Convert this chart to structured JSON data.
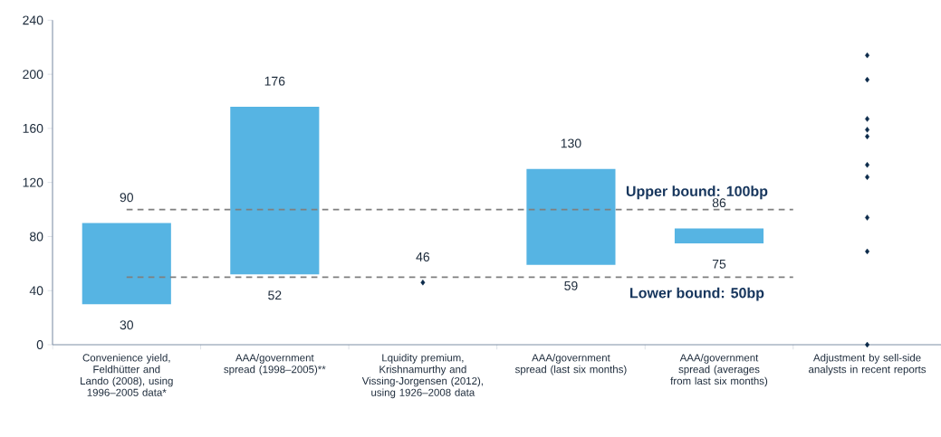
{
  "chart_data": {
    "type": "bar",
    "categories": [
      "Convenience yield, Feldhütter and Lando (2008), using 1996–2005 data*",
      "AAA/government spread (1998–2005)**",
      "Lquidity premium, Krishnamurthy and Vissing-Jorgensen (2012), using 1926–2008 data",
      "AAA/government spread (last six months)",
      "AAA/government spread (averages from last six months)",
      "Adjustment by sell-side analysts in recent reports"
    ],
    "series": [
      {
        "color": "#56b4e3",
        "values": [
          60,
          124,
          null,
          71,
          11,
          null
        ],
        "base": [
          30,
          52,
          null,
          59,
          75,
          null
        ]
      },
      {
        "type": "scatter",
        "color": "#0b2a4a",
        "marker": "diamond",
        "x": [
          "Lquidity premium, Krishnamurthy and Vissing-Jorgensen (2012), using 1926–2008 data",
          "Adjustment by sell-side analysts in recent reports",
          "Adjustment by sell-side analysts in recent reports",
          "Adjustment by sell-side analysts in recent reports",
          "Adjustment by sell-side analysts in recent reports",
          "Adjustment by sell-side analysts in recent reports",
          "Adjustment by sell-side analysts in recent reports",
          "Adjustment by sell-side analysts in recent reports",
          "Adjustment by sell-side analysts in recent reports",
          "Adjustment by sell-side analysts in recent reports",
          "Adjustment by sell-side analysts in recent reports"
        ],
        "values": [
          46,
          214,
          196,
          167,
          159,
          154,
          133,
          124,
          94,
          69,
          0
        ]
      }
    ],
    "ylim": [
      0,
      240
    ],
    "yticks": [
      0,
      40,
      80,
      120,
      160,
      200,
      240
    ],
    "grid": false,
    "ref_lines": [
      {
        "axis": "y",
        "value": 100,
        "label": "Upper bound: 100bp",
        "color": "#7f7f7f",
        "line_style": "dashed"
      },
      {
        "axis": "y",
        "value": 50,
        "label": "Lower bound: 50bp",
        "color": "#7f7f7f",
        "line_style": "dashed"
      }
    ],
    "annotations": [
      {
        "text": "90",
        "x": "Convenience yield, Feldhütter and Lando (2008), using 1996–2005 data*",
        "y": 90
      },
      {
        "text": "30",
        "x": "Convenience yield, Feldhütter and Lando (2008), using 1996–2005 data*",
        "y": 30
      },
      {
        "text": "176",
        "x": "AAA/government spread (1998–2005)**",
        "y": 176
      },
      {
        "text": "52",
        "x": "AAA/government spread (1998–2005)**",
        "y": 52
      },
      {
        "text": "46",
        "x": "Lquidity premium, Krishnamurthy and Vissing-Jorgensen (2012), using 1926–2008 data",
        "y": 46
      },
      {
        "text": "130",
        "x": "AAA/government spread (last six months)",
        "y": 130
      },
      {
        "text": "59",
        "x": "AAA/government spread (last six months)",
        "y": 59
      },
      {
        "text": "86",
        "x": "AAA/government spread (averages from last six months)",
        "y": 86
      },
      {
        "text": "75",
        "x": "AAA/government spread (averages from last six months)",
        "y": 75
      }
    ]
  }
}
